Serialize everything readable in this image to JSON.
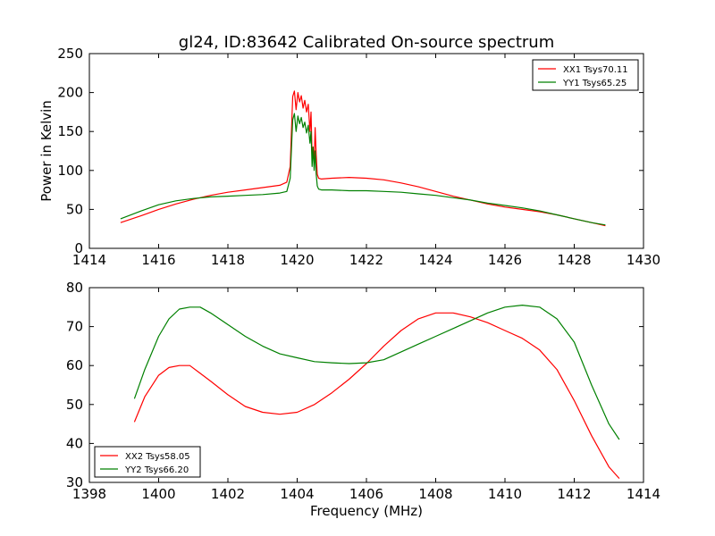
{
  "figure": {
    "title": "gl24, ID:83642 Calibrated On-source spectrum",
    "ylabel": "Power in Kelvin",
    "xlabel": "Frequency (MHz)"
  },
  "chart_data": [
    {
      "type": "line",
      "title": "gl24, ID:83642 Calibrated On-source spectrum",
      "xlabel": "",
      "ylabel": "Power in Kelvin",
      "xlim": [
        1414,
        1430
      ],
      "ylim": [
        0,
        250
      ],
      "xticks": [
        1414,
        1416,
        1418,
        1420,
        1422,
        1424,
        1426,
        1428,
        1430
      ],
      "yticks": [
        0,
        50,
        100,
        150,
        200,
        250
      ],
      "legend_position": "top-right",
      "grid": false,
      "series": [
        {
          "name": "XX1 Tsys70.11",
          "color": "#ff0000",
          "x": [
            1414.9,
            1415.5,
            1416.0,
            1416.5,
            1417.0,
            1417.5,
            1418.0,
            1418.5,
            1419.0,
            1419.5,
            1419.7,
            1419.8,
            1419.87,
            1419.92,
            1419.97,
            1420.02,
            1420.07,
            1420.12,
            1420.17,
            1420.22,
            1420.27,
            1420.32,
            1420.37,
            1420.4,
            1420.43,
            1420.46,
            1420.49,
            1420.52,
            1420.55,
            1420.58,
            1420.62,
            1420.7,
            1421.0,
            1421.5,
            1422.0,
            1422.5,
            1423.0,
            1423.5,
            1424.0,
            1424.5,
            1425.0,
            1425.5,
            1426.0,
            1426.5,
            1427.0,
            1427.5,
            1428.0,
            1428.5,
            1428.9
          ],
          "y": [
            33,
            42,
            50,
            57,
            63,
            68,
            72,
            75,
            78,
            81,
            85,
            105,
            195,
            202,
            178,
            200,
            188,
            196,
            180,
            190,
            175,
            185,
            150,
            175,
            120,
            130,
            110,
            155,
            120,
            95,
            90,
            89,
            90,
            91,
            90,
            88,
            84,
            79,
            73,
            67,
            62,
            57,
            53,
            50,
            47,
            43,
            38,
            33,
            29
          ]
        },
        {
          "name": "YY1 Tsys65.25",
          "color": "#008000",
          "x": [
            1414.9,
            1415.5,
            1416.0,
            1416.5,
            1417.0,
            1417.5,
            1418.0,
            1418.5,
            1419.0,
            1419.5,
            1419.7,
            1419.8,
            1419.87,
            1419.92,
            1419.97,
            1420.02,
            1420.07,
            1420.12,
            1420.17,
            1420.22,
            1420.27,
            1420.32,
            1420.37,
            1420.4,
            1420.43,
            1420.46,
            1420.49,
            1420.52,
            1420.55,
            1420.58,
            1420.62,
            1420.7,
            1421.0,
            1421.5,
            1422.0,
            1422.5,
            1423.0,
            1423.5,
            1424.0,
            1424.5,
            1425.0,
            1425.5,
            1426.0,
            1426.5,
            1427.0,
            1427.5,
            1428.0,
            1428.5,
            1428.9
          ],
          "y": [
            38,
            48,
            56,
            61,
            64,
            66,
            67,
            68,
            69,
            71,
            73,
            90,
            165,
            173,
            150,
            170,
            160,
            168,
            155,
            162,
            148,
            158,
            135,
            150,
            105,
            130,
            100,
            125,
            95,
            80,
            76,
            75,
            75,
            74,
            74,
            73,
            72,
            70,
            68,
            65,
            62,
            58,
            55,
            52,
            48,
            43,
            38,
            33,
            30
          ]
        }
      ]
    },
    {
      "type": "line",
      "title": "",
      "xlabel": "Frequency (MHz)",
      "ylabel": "",
      "xlim": [
        1398,
        1414
      ],
      "ylim": [
        30,
        80
      ],
      "xticks": [
        1398,
        1400,
        1402,
        1404,
        1406,
        1408,
        1410,
        1412,
        1414
      ],
      "yticks": [
        30,
        40,
        50,
        60,
        70,
        80
      ],
      "legend_position": "bottom-left",
      "grid": false,
      "series": [
        {
          "name": "XX2 Tsys58.05",
          "color": "#ff0000",
          "x": [
            1399.3,
            1399.6,
            1400.0,
            1400.3,
            1400.6,
            1400.9,
            1401.2,
            1401.5,
            1402.0,
            1402.5,
            1403.0,
            1403.5,
            1404.0,
            1404.5,
            1405.0,
            1405.5,
            1406.0,
            1406.5,
            1407.0,
            1407.5,
            1408.0,
            1408.5,
            1409.0,
            1409.5,
            1410.0,
            1410.5,
            1411.0,
            1411.5,
            1412.0,
            1412.5,
            1413.0,
            1413.3
          ],
          "y": [
            45.5,
            52,
            57.5,
            59.5,
            60,
            60,
            58,
            56,
            52.5,
            49.5,
            48,
            47.5,
            48,
            50,
            53,
            56.5,
            60.5,
            65,
            69,
            72,
            73.5,
            73.5,
            72.5,
            71,
            69,
            67,
            64,
            59,
            51,
            42,
            34,
            31
          ]
        },
        {
          "name": "YY2 Tsys66.20",
          "color": "#008000",
          "x": [
            1399.3,
            1399.6,
            1400.0,
            1400.3,
            1400.6,
            1400.9,
            1401.2,
            1401.5,
            1402.0,
            1402.5,
            1403.0,
            1403.5,
            1404.0,
            1404.5,
            1405.0,
            1405.5,
            1406.0,
            1406.5,
            1407.0,
            1407.5,
            1408.0,
            1408.5,
            1409.0,
            1409.5,
            1410.0,
            1410.5,
            1411.0,
            1411.5,
            1412.0,
            1412.5,
            1413.0,
            1413.3
          ],
          "y": [
            51.5,
            59,
            67.5,
            72,
            74.5,
            75,
            75,
            73.5,
            70.5,
            67.5,
            65,
            63,
            62,
            61,
            60.7,
            60.5,
            60.7,
            61.5,
            63.5,
            65.5,
            67.5,
            69.5,
            71.5,
            73.5,
            75,
            75.5,
            75,
            72,
            66,
            55,
            45,
            41
          ]
        }
      ]
    }
  ]
}
